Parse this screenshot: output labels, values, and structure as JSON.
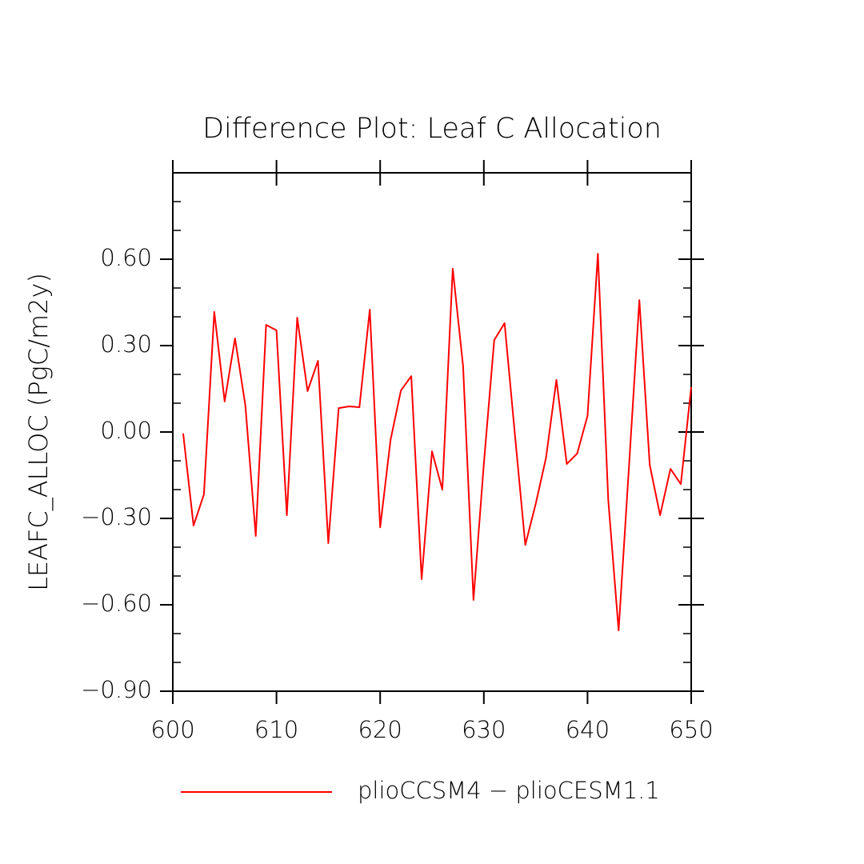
{
  "chart_data": {
    "type": "line",
    "title": "Difference Plot: Leaf C Allocation",
    "ylabel": "LEAFC_ALLOC  (PgC/m2y)",
    "x": [
      601,
      602,
      603,
      604,
      605,
      606,
      607,
      608,
      609,
      610,
      611,
      612,
      613,
      614,
      615,
      616,
      617,
      618,
      619,
      620,
      621,
      622,
      623,
      624,
      625,
      626,
      627,
      628,
      629,
      630,
      631,
      632,
      633,
      634,
      635,
      636,
      637,
      638,
      639,
      640,
      641,
      642,
      643,
      644,
      645,
      646,
      647,
      648,
      649,
      650
    ],
    "series": [
      {
        "name": "plioCCSM4 − plioCESM1.1",
        "color": "#ff0000",
        "values": [
          -0.005,
          -0.325,
          -0.217,
          0.417,
          0.106,
          0.325,
          0.092,
          -0.361,
          0.372,
          0.353,
          -0.289,
          0.397,
          0.142,
          0.247,
          -0.386,
          0.083,
          0.089,
          0.086,
          0.425,
          -0.331,
          -0.028,
          0.144,
          0.194,
          -0.511,
          -0.067,
          -0.2,
          0.567,
          0.228,
          -0.583,
          -0.111,
          0.319,
          0.378,
          -0.01,
          -0.392,
          -0.25,
          -0.089,
          0.181,
          -0.111,
          -0.075,
          0.056,
          0.619,
          -0.236,
          -0.689,
          -0.12,
          0.458,
          -0.114,
          -0.289,
          -0.128,
          -0.181,
          0.156
        ]
      }
    ],
    "xlim": [
      600,
      650
    ],
    "xticks": [
      600,
      610,
      620,
      630,
      640,
      650
    ],
    "ylim": [
      -0.9,
      0.9
    ],
    "yticks": [
      {
        "value": -0.9,
        "label": "−0.90"
      },
      {
        "value": -0.6,
        "label": "−0.60"
      },
      {
        "value": -0.3,
        "label": "−0.30"
      },
      {
        "value": 0,
        "label": "0.00"
      },
      {
        "value": 0.3,
        "label": "0.30"
      },
      {
        "value": 0.6,
        "label": "0.60"
      }
    ],
    "legend": "bottom"
  }
}
